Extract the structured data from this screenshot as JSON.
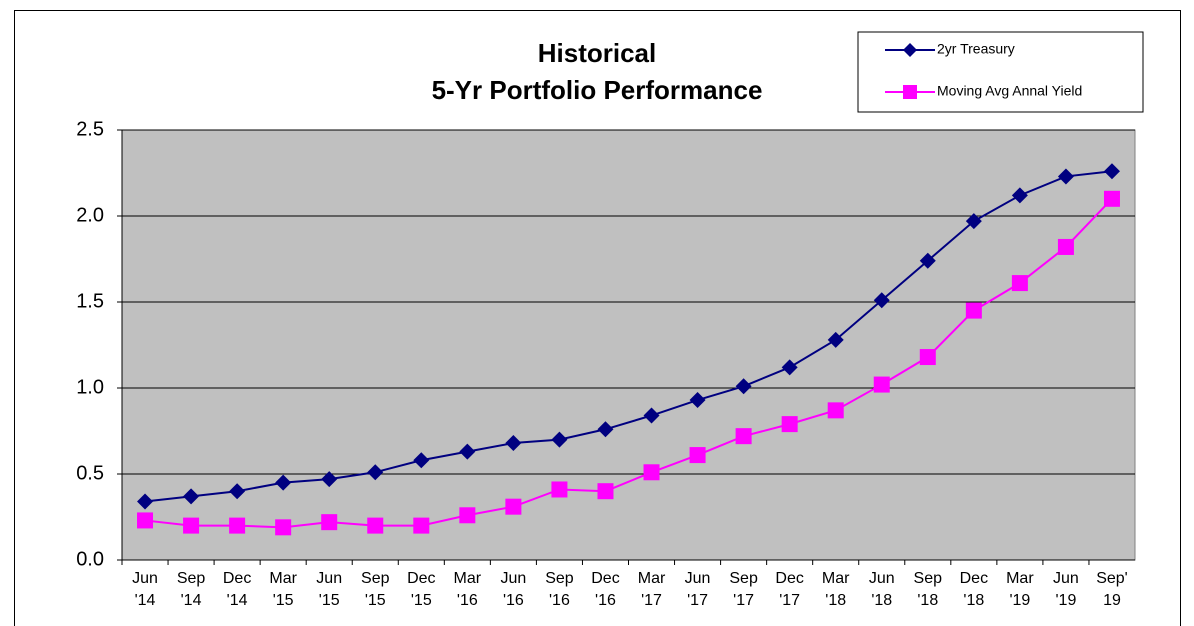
{
  "chart_data": {
    "type": "line",
    "title": [
      "Historical",
      "5-Yr Portfolio Performance"
    ],
    "categories": [
      [
        "Jun",
        "'14"
      ],
      [
        "Sep",
        "'14"
      ],
      [
        "Dec",
        "'14"
      ],
      [
        "Mar",
        "'15"
      ],
      [
        "Jun",
        "'15"
      ],
      [
        "Sep",
        "'15"
      ],
      [
        "Dec",
        "'15"
      ],
      [
        "Mar",
        "'16"
      ],
      [
        "Jun",
        "'16"
      ],
      [
        "Sep",
        "'16"
      ],
      [
        "Dec",
        "'16"
      ],
      [
        "Mar",
        "'17"
      ],
      [
        "Jun",
        "'17"
      ],
      [
        "Sep",
        "'17"
      ],
      [
        "Dec",
        "'17"
      ],
      [
        "Mar",
        "'18"
      ],
      [
        "Jun",
        "'18"
      ],
      [
        "Sep",
        "'18"
      ],
      [
        "Dec",
        "'18"
      ],
      [
        "Mar",
        "'19"
      ],
      [
        "Jun",
        "'19"
      ],
      [
        "Sep'",
        "19"
      ]
    ],
    "series": [
      {
        "name": "2yr Treasury",
        "color": "#000080",
        "marker": "diamond",
        "values": [
          0.34,
          0.37,
          0.4,
          0.45,
          0.47,
          0.51,
          0.58,
          0.63,
          0.68,
          0.7,
          0.76,
          0.84,
          0.93,
          1.01,
          1.12,
          1.28,
          1.51,
          1.74,
          1.97,
          2.12,
          2.23,
          2.26
        ]
      },
      {
        "name": "Moving Avg Annal Yield",
        "color": "#ff00ff",
        "marker": "square",
        "values": [
          0.23,
          0.2,
          0.2,
          0.19,
          0.22,
          0.2,
          0.2,
          0.26,
          0.31,
          0.41,
          0.4,
          0.51,
          0.61,
          0.72,
          0.79,
          0.87,
          1.02,
          1.18,
          1.45,
          1.61,
          1.82,
          2.1
        ]
      }
    ],
    "ylim": [
      0,
      2.5
    ],
    "yticks": [
      {
        "value": 0,
        "label": "0.0"
      },
      0.5,
      {
        "value": 1,
        "label": "1.0"
      },
      1.5,
      {
        "value": 2,
        "label": "2.0"
      },
      2.5
    ],
    "grid": true,
    "legend": "top-right",
    "plot_background": "#c0c0c0"
  }
}
